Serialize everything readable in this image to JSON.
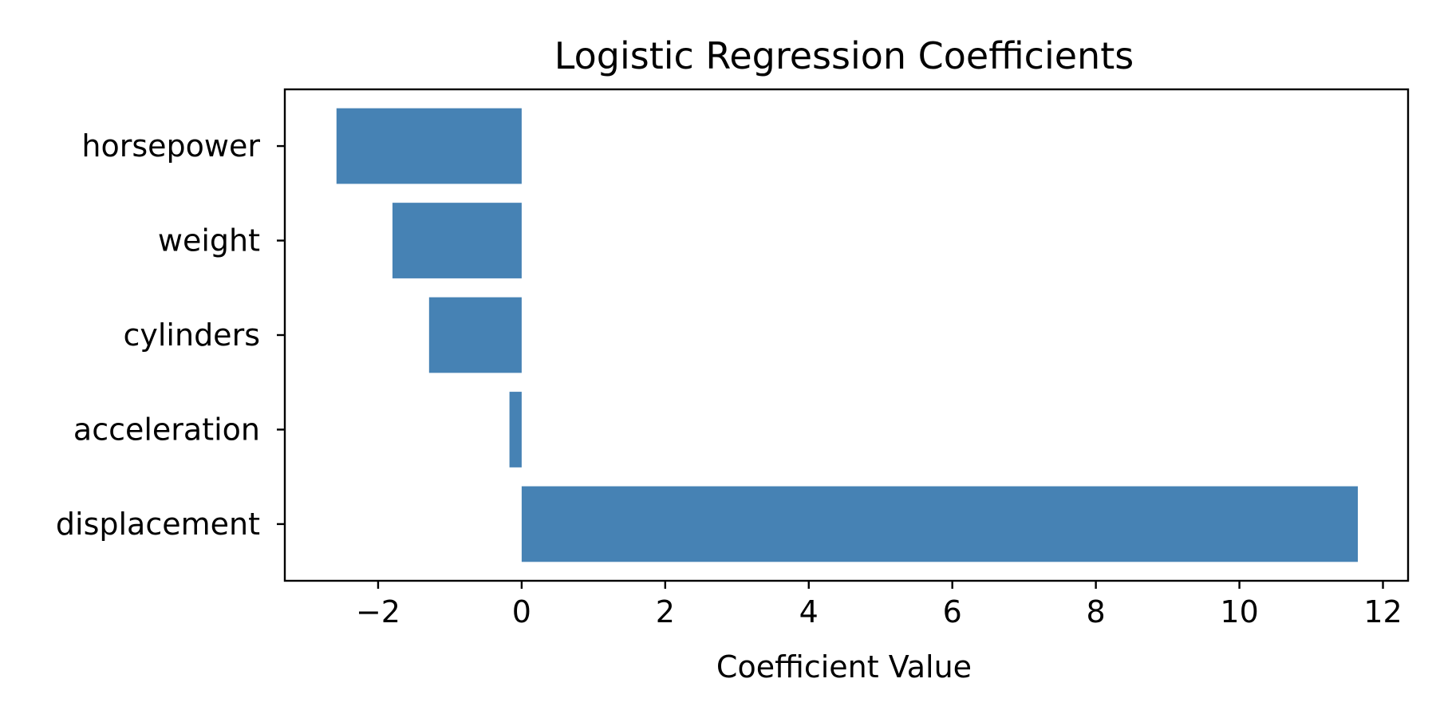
{
  "chart_data": {
    "type": "bar",
    "orientation": "horizontal",
    "title": "Logistic Regression Coefficients",
    "xlabel": "Coefficient Value",
    "ylabel": "",
    "categories": [
      "displacement",
      "acceleration",
      "cylinders",
      "weight",
      "horsepower"
    ],
    "values": [
      11.65,
      -0.17,
      -1.29,
      -1.8,
      -2.58
    ],
    "xlim": [
      -3.3,
      12.35
    ],
    "xticks": [
      -2,
      0,
      2,
      4,
      6,
      8,
      10,
      12
    ],
    "xtick_labels": [
      "−2",
      "0",
      "2",
      "4",
      "6",
      "8",
      "10",
      "12"
    ],
    "bar_color": "#4682b4",
    "grid": false,
    "legend": "none"
  }
}
